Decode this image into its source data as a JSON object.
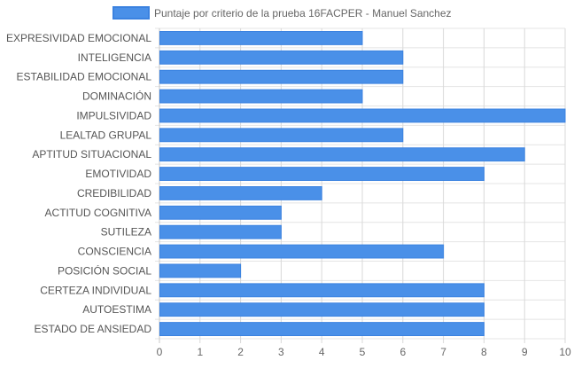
{
  "chart_data": {
    "type": "bar",
    "orientation": "horizontal",
    "categories": [
      "EXPRESIVIDAD EMOCIONAL",
      "INTELIGENCIA",
      "ESTABILIDAD EMOCIONAL",
      "DOMINACIÓN",
      "IMPULSIVIDAD",
      "LEALTAD GRUPAL",
      "APTITUD SITUACIONAL",
      "EMOTIVIDAD",
      "CREDIBILIDAD",
      "ACTITUD COGNITIVA",
      "SUTILEZA",
      "CONSCIENCIA",
      "POSICIÓN SOCIAL",
      "CERTEZA INDIVIDUAL",
      "AUTOESTIMA",
      "ESTADO DE ANSIEDAD"
    ],
    "series": [
      {
        "name": "Puntaje por criterio de la prueba 16FACPER - Manuel Sanchez",
        "values": [
          5,
          6,
          6,
          5,
          10,
          6,
          9,
          8,
          4,
          3,
          3,
          7,
          2,
          8,
          8,
          8
        ],
        "color": "#4a90e8",
        "border_color": "#3b82e0"
      }
    ],
    "xlim": [
      0,
      10
    ],
    "x_ticks": [
      "0",
      "1",
      "2",
      "3",
      "4",
      "5",
      "6",
      "7",
      "8",
      "9",
      "10"
    ],
    "grid": true,
    "legend_position": "top-center",
    "title": "",
    "xlabel": "",
    "ylabel": ""
  }
}
